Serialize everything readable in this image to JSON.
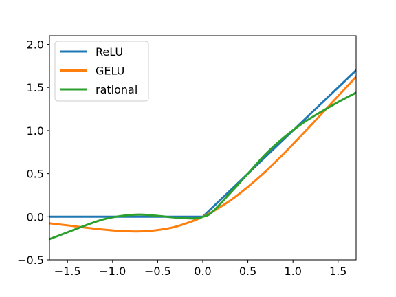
{
  "chart_data": {
    "type": "line",
    "xlim": [
      -1.7,
      1.7
    ],
    "ylim": [
      -0.5,
      2.1
    ],
    "grid": false,
    "legend_position": "upper-left",
    "xticks": [
      -1.5,
      -1.0,
      -0.5,
      0.0,
      0.5,
      1.0,
      1.5
    ],
    "xtick_labels": [
      "−1.5",
      "−1.0",
      "−0.5",
      "0.0",
      "0.5",
      "1.0",
      "1.5"
    ],
    "yticks": [
      -0.5,
      0.0,
      0.5,
      1.0,
      1.5,
      2.0
    ],
    "ytick_labels": [
      "−0.5",
      "0.0",
      "0.5",
      "1.0",
      "1.5",
      "2.0"
    ],
    "x": [
      -1.7,
      -1.5,
      -1.3,
      -1.1,
      -0.9,
      -0.7,
      -0.5,
      -0.3,
      -0.1,
      0.0,
      0.1,
      0.3,
      0.5,
      0.7,
      0.9,
      1.1,
      1.3,
      1.5,
      1.7
    ],
    "series": [
      {
        "name": "ReLU",
        "color": "#1f77b4",
        "values": [
          0,
          0,
          0,
          0,
          0,
          0,
          0,
          0,
          0,
          0,
          0.1,
          0.3,
          0.5,
          0.7,
          0.9,
          1.1,
          1.3,
          1.5,
          1.7
        ]
      },
      {
        "name": "GELU",
        "color": "#ff7f0e",
        "values": [
          -0.076,
          -0.1,
          -0.126,
          -0.149,
          -0.166,
          -0.17,
          -0.154,
          -0.115,
          -0.046,
          0.0,
          0.054,
          0.185,
          0.346,
          0.53,
          0.734,
          0.951,
          1.174,
          1.4,
          1.624
        ]
      },
      {
        "name": "rational",
        "color": "#2ca02c",
        "values": [
          -0.26,
          -0.18,
          -0.1,
          -0.03,
          0.01,
          0.025,
          0.01,
          -0.01,
          -0.02,
          0.0,
          0.05,
          0.27,
          0.5,
          0.73,
          0.92,
          1.08,
          1.21,
          1.33,
          1.44
        ]
      }
    ]
  }
}
